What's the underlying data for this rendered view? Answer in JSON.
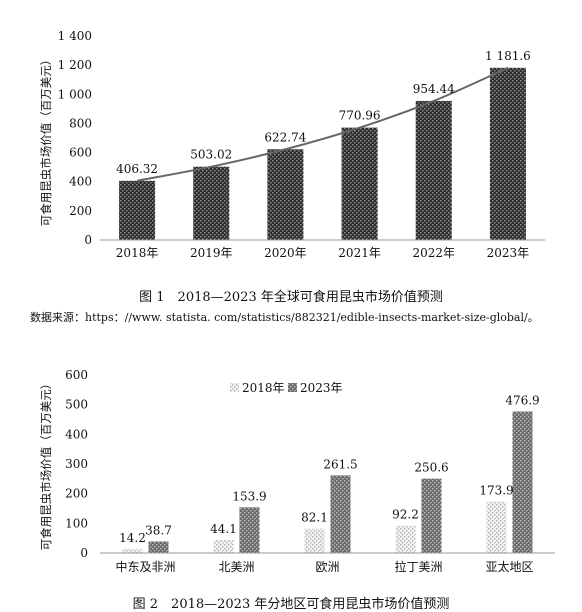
{
  "captions": {
    "figure1": "图 1　2018—2023 年全球可食用昆虫市场价值预测",
    "source": "数据来源：https：//www. statista. com/statistics/882321/edible-insects-market-size-global/。",
    "figure2": "图 2　2018—2023 年分地区可食用昆虫市场价值预测"
  },
  "chart_data": [
    {
      "type": "bar",
      "title": "",
      "xlabel": "",
      "ylabel": "可食用昆虫市场价值（百万美元）",
      "ylim": [
        0,
        1400
      ],
      "yticks": [
        0,
        200,
        400,
        600,
        800,
        1000,
        1200,
        1400
      ],
      "ytick_labels": [
        "0",
        "200",
        "400",
        "600",
        "800",
        "1 000",
        "1 200",
        "1 400"
      ],
      "categories": [
        "2018年",
        "2019年",
        "2020年",
        "2021年",
        "2022年",
        "2023年"
      ],
      "values": [
        406.32,
        503.02,
        622.74,
        770.96,
        954.44,
        1181.6
      ],
      "data_labels": [
        "406.32",
        "503.02",
        "622.74",
        "770.96",
        "954.44",
        "1 181.6"
      ],
      "trendline": true,
      "grid": false,
      "colors": {
        "bar": "#3a3a3a",
        "trend": "#666666"
      }
    },
    {
      "type": "bar",
      "title": "",
      "xlabel": "",
      "ylabel": "可食用昆虫市场价值（百万美元）",
      "ylim": [
        0,
        600
      ],
      "yticks": [
        0,
        100,
        200,
        300,
        400,
        500,
        600
      ],
      "ytick_labels": [
        "0",
        "100",
        "200",
        "300",
        "400",
        "500",
        "600"
      ],
      "categories": [
        "中东及非洲",
        "北美洲",
        "欧洲",
        "拉丁美洲",
        "亚太地区"
      ],
      "series": [
        {
          "name": "2018年",
          "values": [
            14.2,
            44.1,
            82.1,
            92.2,
            173.9
          ],
          "data_labels": [
            "14.2",
            "44.1",
            "82.1",
            "92.2",
            "173.9"
          ]
        },
        {
          "name": "2023年",
          "values": [
            38.7,
            153.9,
            261.5,
            250.6,
            476.9
          ],
          "data_labels": [
            "38.7",
            "153.9",
            "261.5",
            "250.6",
            "476.9"
          ]
        }
      ],
      "legend": "top-center",
      "grid": false,
      "colors": {
        "series_2018": "#dedede",
        "series_2023": "#7a7a7a"
      }
    }
  ]
}
